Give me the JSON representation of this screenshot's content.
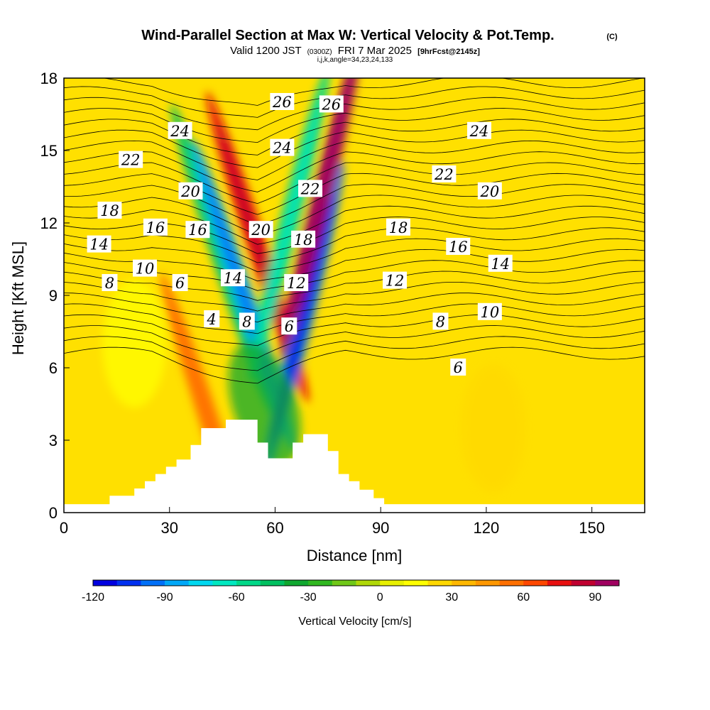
{
  "chart_data": {
    "type": "heatmap",
    "title": "Wind-Parallel Section at Max W: Vertical Velocity & Pot.Temp.",
    "title_mark": "(C)",
    "subtitle_main": "Valid 1200 JST",
    "subtitle_utc": "(0300Z)",
    "subtitle_date": "FRI 7 Mar 2025",
    "subtitle_fcst": "[9hrFcst@2145z]",
    "indices": "i,j,k,angle=34,23,24,133",
    "xlabel": "Distance [nm]",
    "ylabel": "Height [Kft MSL]",
    "xlim": [
      0,
      165
    ],
    "ylim": [
      0,
      18
    ],
    "x_ticks": [
      0,
      30,
      60,
      90,
      120,
      150
    ],
    "y_ticks": [
      0,
      3,
      6,
      9,
      12,
      15,
      18
    ],
    "colorbar": {
      "label": "Vertical Velocity [cm/s]",
      "min": -120,
      "max": 100,
      "step": 10,
      "ticks": [
        -120,
        -90,
        -60,
        -30,
        0,
        30,
        60,
        90
      ],
      "colors": [
        "#0000e0",
        "#0030f0",
        "#0070f8",
        "#00a8f8",
        "#00d8f0",
        "#00e8c0",
        "#00d888",
        "#00c060",
        "#10a830",
        "#30b820",
        "#70c818",
        "#b0d808",
        "#e8f000",
        "#ffff00",
        "#ffd800",
        "#ffb800",
        "#ff9800",
        "#ff7000",
        "#ff4800",
        "#e81010",
        "#c00030",
        "#a00060"
      ]
    },
    "velocity_cores_cm_s": [
      {
        "x": 45,
        "z": 10.5,
        "w": -45
      },
      {
        "x": 51,
        "z": 9,
        "w": -85
      },
      {
        "x": 55,
        "z": 11,
        "w": 75
      },
      {
        "x": 64,
        "z": 12,
        "w": -55
      },
      {
        "x": 68,
        "z": 8,
        "w": -100
      },
      {
        "x": 73,
        "z": 13,
        "w": 95
      },
      {
        "x": 57,
        "z": 4.5,
        "w": -35
      },
      {
        "x": 42,
        "z": 3.5,
        "w": 50
      },
      {
        "x": 122,
        "z": 3.5,
        "w": 22
      },
      {
        "x": 20,
        "z": 7,
        "w": 18
      }
    ],
    "theta_contour_labels": [
      {
        "text": "26",
        "x": 62,
        "z": 17.0
      },
      {
        "text": "26",
        "x": 76,
        "z": 16.9
      },
      {
        "text": "24",
        "x": 33,
        "z": 15.8
      },
      {
        "text": "24",
        "x": 62,
        "z": 15.1
      },
      {
        "text": "24",
        "x": 118,
        "z": 15.8
      },
      {
        "text": "22",
        "x": 19,
        "z": 14.6
      },
      {
        "text": "22",
        "x": 70,
        "z": 13.4
      },
      {
        "text": "22",
        "x": 108,
        "z": 14.0
      },
      {
        "text": "20",
        "x": 36,
        "z": 13.3
      },
      {
        "text": "20",
        "x": 121,
        "z": 13.3
      },
      {
        "text": "20",
        "x": 56,
        "z": 11.7
      },
      {
        "text": "18",
        "x": 13,
        "z": 12.5
      },
      {
        "text": "18",
        "x": 95,
        "z": 11.8
      },
      {
        "text": "18",
        "x": 68,
        "z": 11.3
      },
      {
        "text": "16",
        "x": 26,
        "z": 11.8
      },
      {
        "text": "16",
        "x": 38,
        "z": 11.7
      },
      {
        "text": "16",
        "x": 112,
        "z": 11.0
      },
      {
        "text": "14",
        "x": 10,
        "z": 11.1
      },
      {
        "text": "14",
        "x": 48,
        "z": 9.7
      },
      {
        "text": "14",
        "x": 124,
        "z": 10.3
      },
      {
        "text": "12",
        "x": 66,
        "z": 9.5
      },
      {
        "text": "12",
        "x": 94,
        "z": 9.6
      },
      {
        "text": "10",
        "x": 23,
        "z": 10.1
      },
      {
        "text": "10",
        "x": 121,
        "z": 8.3
      },
      {
        "text": "8",
        "x": 13,
        "z": 9.5
      },
      {
        "text": "8",
        "x": 52,
        "z": 7.9
      },
      {
        "text": "8",
        "x": 107,
        "z": 7.9
      },
      {
        "text": "6",
        "x": 33,
        "z": 9.5
      },
      {
        "text": "6",
        "x": 64,
        "z": 7.7
      },
      {
        "text": "6",
        "x": 112,
        "z": 6.0
      },
      {
        "text": "4",
        "x": 42,
        "z": 8.0
      }
    ],
    "terrain": [
      {
        "x": 0,
        "z": 0.35
      },
      {
        "x": 13,
        "z": 0.35
      },
      {
        "x": 13,
        "z": 0.7
      },
      {
        "x": 20,
        "z": 0.7
      },
      {
        "x": 20,
        "z": 1.0
      },
      {
        "x": 23,
        "z": 1.0
      },
      {
        "x": 23,
        "z": 1.3
      },
      {
        "x": 26,
        "z": 1.3
      },
      {
        "x": 26,
        "z": 1.6
      },
      {
        "x": 29,
        "z": 1.6
      },
      {
        "x": 29,
        "z": 1.9
      },
      {
        "x": 32,
        "z": 1.9
      },
      {
        "x": 32,
        "z": 2.2
      },
      {
        "x": 36,
        "z": 2.2
      },
      {
        "x": 36,
        "z": 2.8
      },
      {
        "x": 39,
        "z": 2.8
      },
      {
        "x": 39,
        "z": 3.5
      },
      {
        "x": 46,
        "z": 3.5
      },
      {
        "x": 46,
        "z": 3.85
      },
      {
        "x": 55,
        "z": 3.85
      },
      {
        "x": 55,
        "z": 2.9
      },
      {
        "x": 58,
        "z": 2.9
      },
      {
        "x": 58,
        "z": 2.25
      },
      {
        "x": 65,
        "z": 2.25
      },
      {
        "x": 65,
        "z": 2.9
      },
      {
        "x": 68,
        "z": 2.9
      },
      {
        "x": 68,
        "z": 3.25
      },
      {
        "x": 75,
        "z": 3.25
      },
      {
        "x": 75,
        "z": 2.55
      },
      {
        "x": 78,
        "z": 2.55
      },
      {
        "x": 78,
        "z": 1.6
      },
      {
        "x": 81,
        "z": 1.6
      },
      {
        "x": 81,
        "z": 1.3
      },
      {
        "x": 84,
        "z": 1.3
      },
      {
        "x": 84,
        "z": 0.95
      },
      {
        "x": 88,
        "z": 0.95
      },
      {
        "x": 88,
        "z": 0.6
      },
      {
        "x": 91,
        "z": 0.6
      },
      {
        "x": 91,
        "z": 0.35
      },
      {
        "x": 165,
        "z": 0.35
      }
    ]
  }
}
